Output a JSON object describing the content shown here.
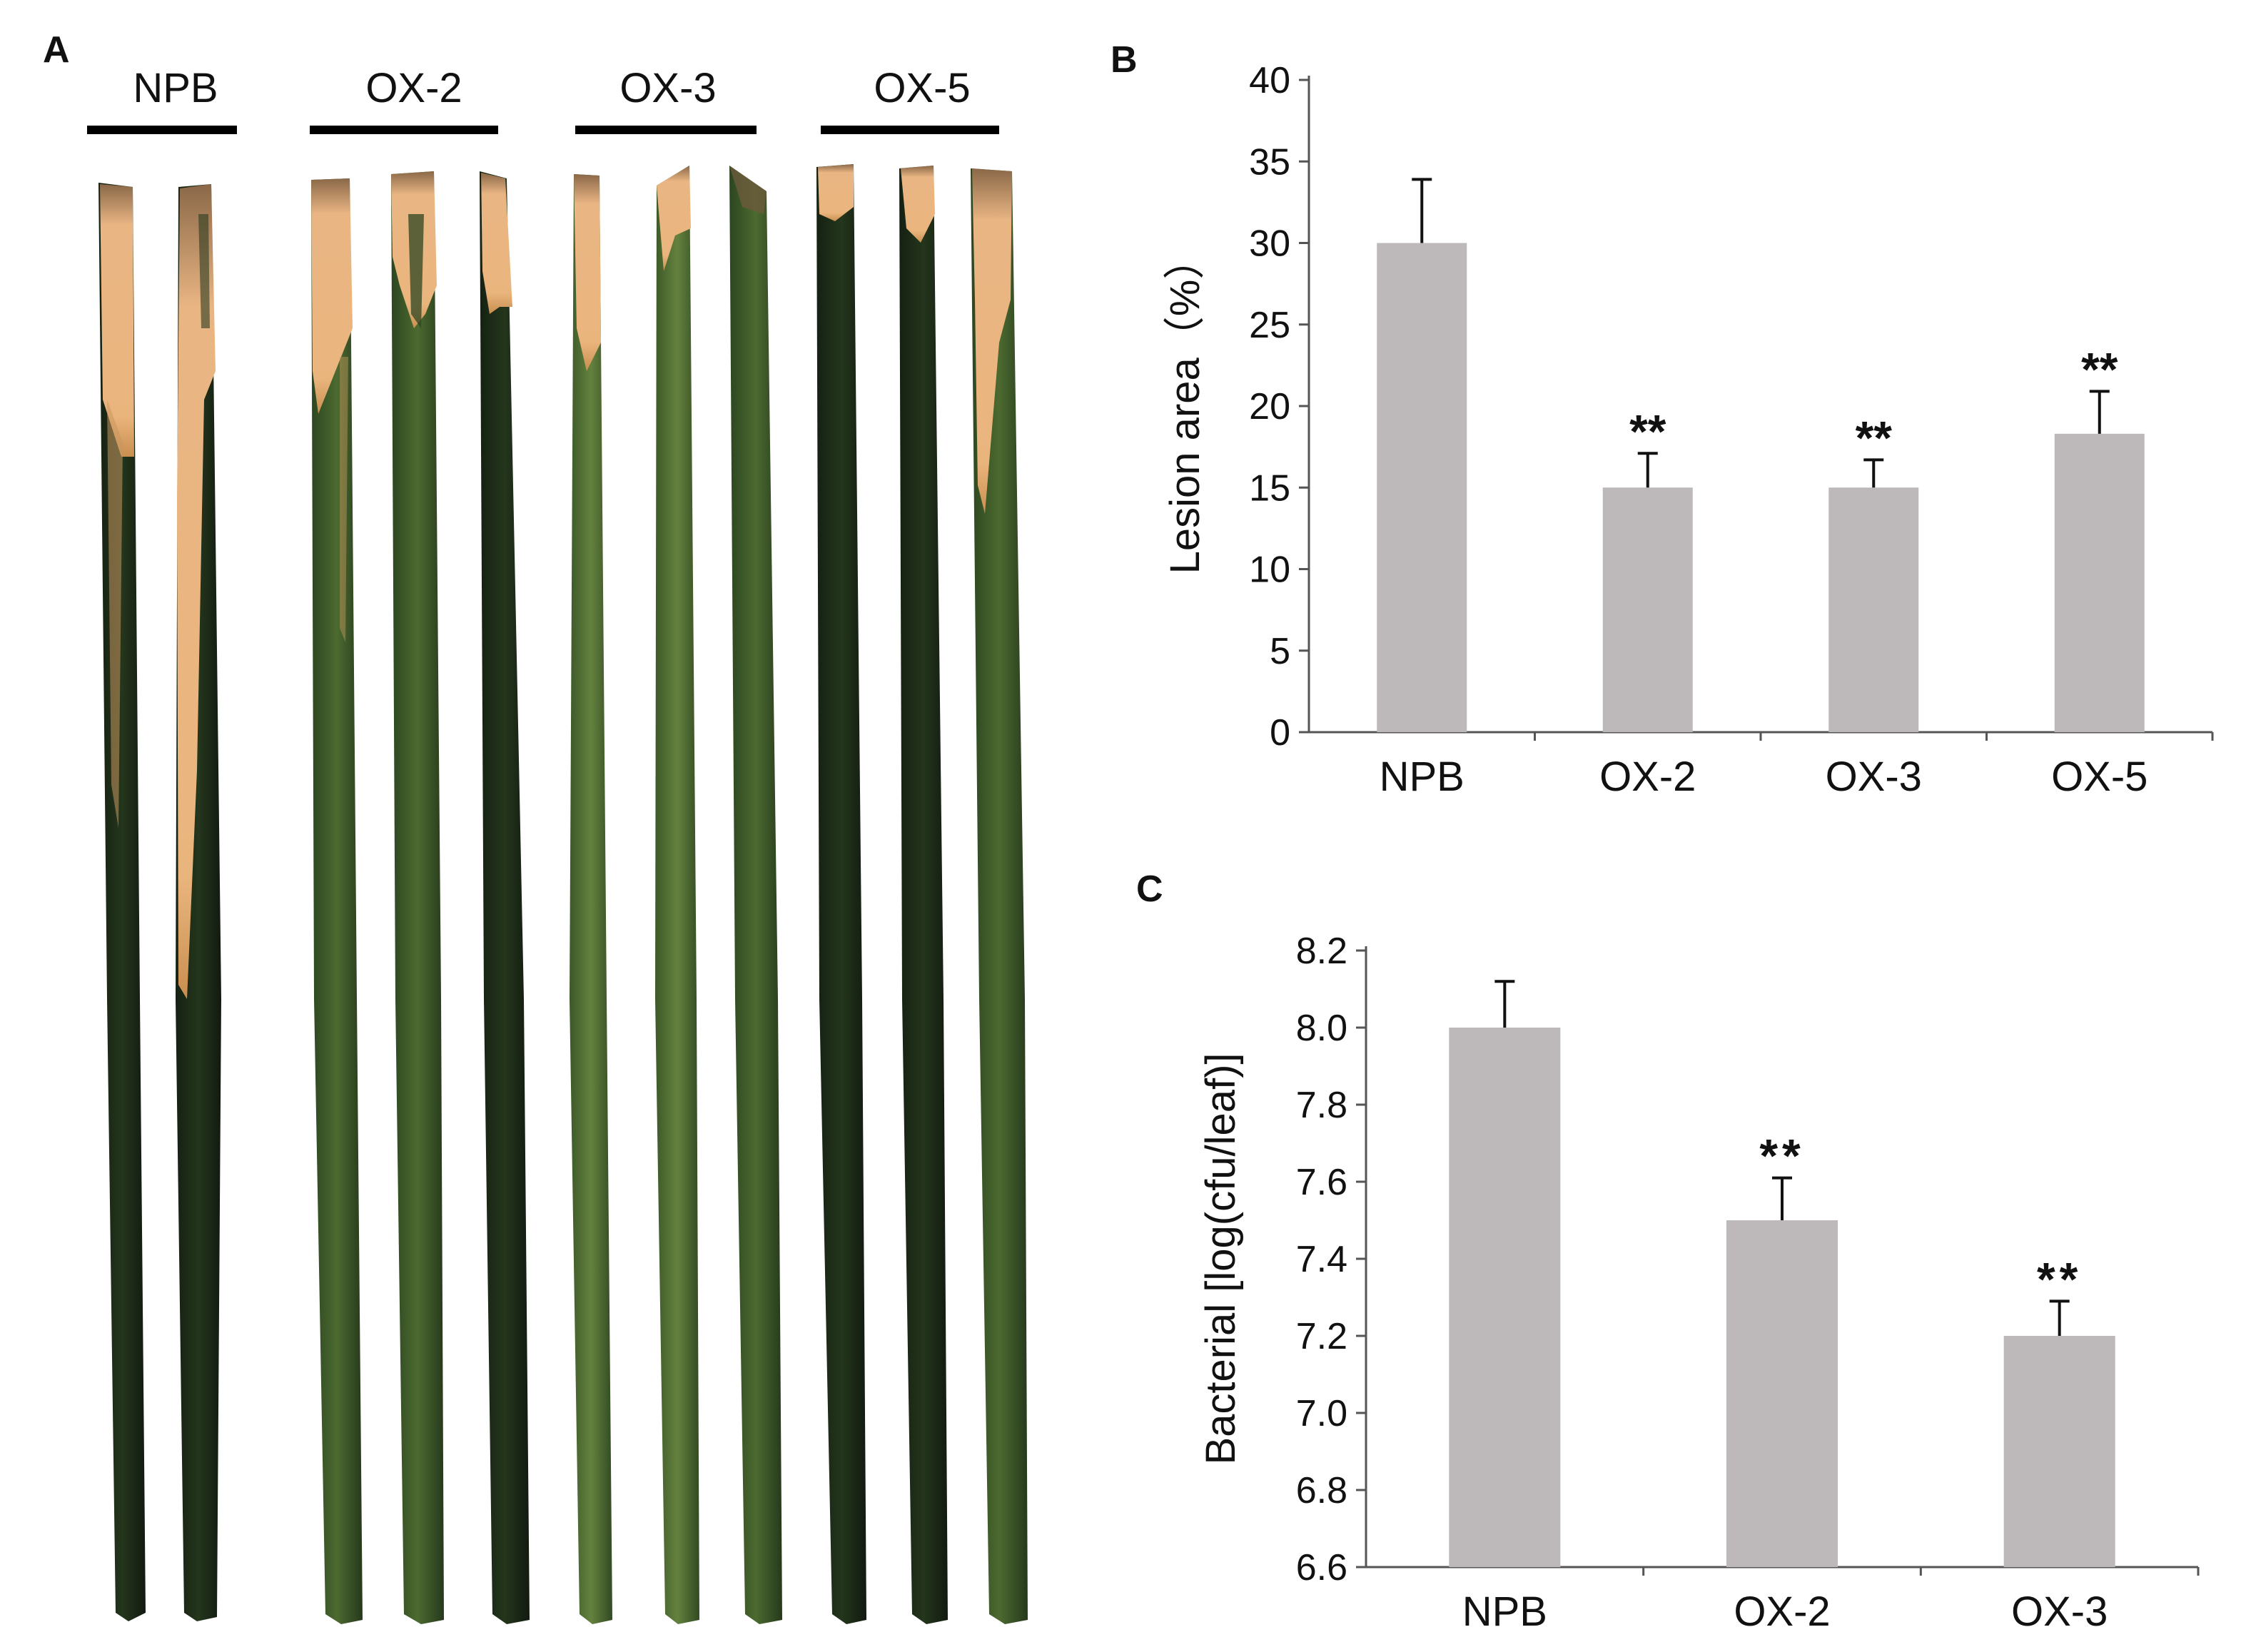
{
  "panels": {
    "a_label": "A",
    "b_label": "B",
    "c_label": "C"
  },
  "photo": {
    "groups": [
      "NPB",
      "OX-2",
      "OX-3",
      "OX-5"
    ],
    "leaf_colors": {
      "dark": "#1c2a18",
      "green": "#3d5a2a",
      "light": "#5e7a3c",
      "lesion": "#e8b07a",
      "lesion_edge": "#7a5a3a"
    }
  },
  "chart_data": [
    {
      "type": "bar",
      "panel": "B",
      "categories": [
        "NPB",
        "OX-2",
        "OX-3",
        "OX-5"
      ],
      "values": [
        30,
        15,
        15,
        18.3
      ],
      "errors": [
        3.9,
        2.1,
        1.7,
        2.6
      ],
      "significance": [
        "",
        "**",
        "**",
        "**"
      ],
      "ylabel": "Lesion area（%）",
      "xlabel": "",
      "ylim": [
        0,
        40
      ],
      "yticks": [
        0,
        5,
        10,
        15,
        20,
        25,
        30,
        35,
        40
      ],
      "bar_color": "#bdb9ba",
      "grid": false
    },
    {
      "type": "bar",
      "panel": "C",
      "categories": [
        "NPB",
        "OX-2",
        "OX-3"
      ],
      "values": [
        8.0,
        7.5,
        7.2
      ],
      "errors": [
        0.12,
        0.11,
        0.09
      ],
      "significance": [
        "",
        "**",
        "**"
      ],
      "ylabel": "Bacterial [log(cfu/leaf)]",
      "xlabel": "",
      "ylim": [
        6.6,
        8.2
      ],
      "yticks": [
        "6.6",
        "6.8",
        "7.0",
        "7.2",
        "7.4",
        "7.6",
        "7.8",
        "8.0",
        "8.2"
      ],
      "bar_color": "#bdb9ba",
      "grid": false
    }
  ]
}
